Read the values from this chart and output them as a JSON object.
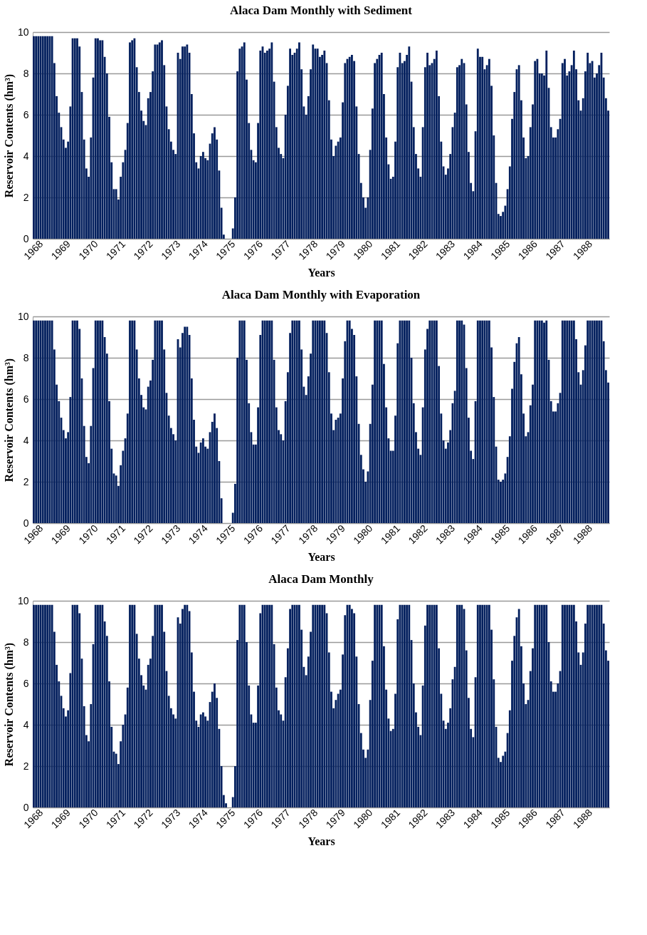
{
  "chart_data": [
    {
      "type": "bar",
      "title": "Alaca Dam Monthly with Sediment",
      "xlabel": "Years",
      "ylabel": "Reservoir Contents (hm³)",
      "ylim": [
        0,
        10
      ],
      "yticks": [
        0,
        2,
        4,
        6,
        8,
        10
      ],
      "grid": "y",
      "color": "#04205e",
      "categories": [
        "1968",
        null,
        null,
        null,
        null,
        null,
        null,
        null,
        null,
        null,
        null,
        null,
        "1969",
        null,
        null,
        null,
        null,
        null,
        null,
        null,
        null,
        null,
        null,
        null,
        "1970",
        null,
        null,
        null,
        null,
        null,
        null,
        null,
        null,
        null,
        null,
        null,
        "1971",
        null,
        null,
        null,
        null,
        null,
        null,
        null,
        null,
        null,
        null,
        null,
        "1972",
        null,
        null,
        null,
        null,
        null,
        null,
        null,
        null,
        null,
        null,
        null,
        "1973",
        null,
        null,
        null,
        null,
        null,
        null,
        null,
        null,
        null,
        null,
        null,
        "1974",
        null,
        null,
        null,
        null,
        null,
        null,
        null,
        null,
        null,
        null,
        null,
        "1975",
        null,
        null,
        null,
        null,
        null,
        null,
        null,
        null,
        null,
        null,
        null,
        "1976",
        null,
        null,
        null,
        null,
        null,
        null,
        null,
        null,
        null,
        null,
        null,
        "1977",
        null,
        null,
        null,
        null,
        null,
        null,
        null,
        null,
        null,
        null,
        null,
        "1978",
        null,
        null,
        null,
        null,
        null,
        null,
        null,
        null,
        null,
        null,
        null,
        "1979",
        null,
        null,
        null,
        null,
        null,
        null,
        null,
        null,
        null,
        null,
        null,
        "1980",
        null,
        null,
        null,
        null,
        null,
        null,
        null,
        null,
        null,
        null,
        null,
        "1981",
        null,
        null,
        null,
        null,
        null,
        null,
        null,
        null,
        null,
        null,
        null,
        "1982",
        null,
        null,
        null,
        null,
        null,
        null,
        null,
        null,
        null,
        null,
        null,
        "1983",
        null,
        null,
        null,
        null,
        null,
        null,
        null,
        null,
        null,
        null,
        null,
        "1984",
        null,
        null,
        null,
        null,
        null,
        null,
        null,
        null,
        null,
        null,
        null,
        "1985",
        null,
        null,
        null,
        null,
        null,
        null,
        null,
        null,
        null,
        null,
        null,
        "1986",
        null,
        null,
        null,
        null,
        null,
        null,
        null,
        null,
        null,
        null,
        null,
        "1987",
        null,
        null,
        null,
        null,
        null,
        null,
        null,
        null,
        null,
        null,
        null,
        "1988",
        null,
        null,
        null,
        null,
        null,
        null,
        null,
        null,
        null,
        null,
        null
      ],
      "values": [
        9.8,
        9.8,
        9.8,
        9.8,
        9.8,
        9.8,
        9.8,
        9.8,
        9.8,
        8.5,
        6.9,
        6.1,
        5.4,
        4.8,
        4.4,
        4.7,
        6.4,
        9.7,
        9.7,
        9.7,
        9.3,
        7.1,
        4.8,
        3.4,
        3.0,
        4.9,
        7.8,
        9.7,
        9.7,
        9.6,
        9.6,
        8.8,
        8.0,
        5.9,
        3.7,
        2.4,
        2.4,
        1.9,
        3.0,
        3.7,
        4.3,
        5.6,
        9.5,
        9.6,
        9.7,
        8.3,
        7.1,
        6.2,
        5.7,
        5.5,
        6.8,
        7.1,
        8.1,
        9.4,
        9.4,
        9.5,
        9.6,
        8.4,
        6.4,
        5.3,
        4.7,
        4.3,
        4.1,
        9.0,
        8.7,
        9.3,
        9.3,
        9.4,
        9.0,
        7.0,
        5.1,
        3.7,
        3.4,
        4.0,
        4.2,
        3.9,
        3.8,
        4.6,
        5.1,
        5.4,
        4.8,
        3.3,
        1.5,
        0.2,
        0,
        0,
        0,
        0.5,
        2.0,
        8.1,
        9.2,
        9.3,
        9.5,
        7.7,
        5.6,
        4.3,
        3.8,
        3.7,
        5.6,
        9.1,
        9.3,
        9.0,
        9.1,
        9.2,
        9.5,
        7.6,
        5.4,
        4.4,
        4.1,
        3.9,
        6.0,
        7.4,
        9.2,
        8.9,
        9.0,
        9.2,
        9.5,
        8.2,
        6.4,
        6.0,
        6.9,
        8.2,
        9.4,
        9.2,
        9.2,
        8.8,
        8.9,
        9.1,
        8.5,
        6.7,
        4.8,
        4.0,
        4.5,
        4.7,
        4.9,
        6.6,
        8.5,
        8.7,
        8.8,
        8.9,
        8.6,
        6.4,
        4.1,
        2.7,
        2.0,
        1.5,
        2.0,
        4.3,
        6.3,
        8.5,
        8.7,
        8.9,
        9.0,
        7.0,
        4.9,
        3.6,
        2.9,
        3.0,
        4.7,
        8.3,
        9.0,
        8.5,
        8.6,
        8.9,
        9.3,
        7.6,
        5.4,
        4.1,
        3.4,
        3.0,
        5.4,
        8.3,
        9.0,
        8.4,
        8.5,
        8.7,
        9.1,
        6.9,
        4.7,
        3.5,
        3.1,
        3.4,
        4.1,
        5.4,
        6.1,
        8.3,
        8.4,
        8.7,
        8.5,
        6.5,
        4.2,
        2.7,
        2.3,
        5.2,
        9.2,
        8.8,
        8.8,
        8.2,
        8.4,
        8.7,
        7.4,
        5.0,
        2.7,
        1.2,
        1.1,
        1.3,
        1.6,
        2.4,
        3.5,
        5.8,
        7.1,
        8.2,
        8.4,
        6.7,
        4.9,
        3.9,
        4.0,
        5.4,
        6.5,
        8.6,
        8.7,
        8.0,
        8.0,
        7.9,
        9.1,
        7.3,
        5.4,
        4.9,
        4.9,
        5.3,
        5.8,
        8.5,
        8.7,
        7.9,
        8.1,
        8.4,
        9.1,
        8.2,
        6.7,
        6.2,
        6.8,
        8.1,
        9.0,
        8.5,
        8.6,
        7.8,
        8.0,
        8.4,
        9.0,
        7.8,
        6.8,
        6.2
      ]
    },
    {
      "type": "bar",
      "title": "Alaca Dam Monthly with Evaporation",
      "xlabel": "Years",
      "ylabel": "Reservoir Contents (hm³)",
      "ylim": [
        0,
        10
      ],
      "yticks": [
        0,
        2,
        4,
        6,
        8,
        10
      ],
      "grid": "y",
      "color": "#04205e",
      "categories": [
        "1968",
        null,
        null,
        null,
        null,
        null,
        null,
        null,
        null,
        null,
        null,
        null,
        "1969",
        null,
        null,
        null,
        null,
        null,
        null,
        null,
        null,
        null,
        null,
        null,
        "1970",
        null,
        null,
        null,
        null,
        null,
        null,
        null,
        null,
        null,
        null,
        null,
        "1971",
        null,
        null,
        null,
        null,
        null,
        null,
        null,
        null,
        null,
        null,
        null,
        "1972",
        null,
        null,
        null,
        null,
        null,
        null,
        null,
        null,
        null,
        null,
        null,
        "1973",
        null,
        null,
        null,
        null,
        null,
        null,
        null,
        null,
        null,
        null,
        null,
        "1974",
        null,
        null,
        null,
        null,
        null,
        null,
        null,
        null,
        null,
        null,
        null,
        "1975",
        null,
        null,
        null,
        null,
        null,
        null,
        null,
        null,
        null,
        null,
        null,
        "1976",
        null,
        null,
        null,
        null,
        null,
        null,
        null,
        null,
        null,
        null,
        null,
        "1977",
        null,
        null,
        null,
        null,
        null,
        null,
        null,
        null,
        null,
        null,
        null,
        "1978",
        null,
        null,
        null,
        null,
        null,
        null,
        null,
        null,
        null,
        null,
        null,
        "1979",
        null,
        null,
        null,
        null,
        null,
        null,
        null,
        null,
        null,
        null,
        null,
        "1980",
        null,
        null,
        null,
        null,
        null,
        null,
        null,
        null,
        null,
        null,
        null,
        "1981",
        null,
        null,
        null,
        null,
        null,
        null,
        null,
        null,
        null,
        null,
        null,
        "1982",
        null,
        null,
        null,
        null,
        null,
        null,
        null,
        null,
        null,
        null,
        null,
        "1983",
        null,
        null,
        null,
        null,
        null,
        null,
        null,
        null,
        null,
        null,
        null,
        "1984",
        null,
        null,
        null,
        null,
        null,
        null,
        null,
        null,
        null,
        null,
        null,
        "1985",
        null,
        null,
        null,
        null,
        null,
        null,
        null,
        null,
        null,
        null,
        null,
        "1986",
        null,
        null,
        null,
        null,
        null,
        null,
        null,
        null,
        null,
        null,
        null,
        "1987",
        null,
        null,
        null,
        null,
        null,
        null,
        null,
        null,
        null,
        null,
        null,
        "1988",
        null,
        null,
        null,
        null,
        null,
        null,
        null,
        null,
        null,
        null,
        null
      ],
      "values": [
        9.8,
        9.8,
        9.8,
        9.8,
        9.8,
        9.8,
        9.8,
        9.8,
        9.8,
        8.4,
        6.7,
        5.9,
        5.1,
        4.5,
        4.1,
        4.4,
        6.1,
        9.8,
        9.8,
        9.8,
        9.4,
        7.0,
        4.7,
        3.2,
        2.9,
        4.7,
        7.5,
        9.8,
        9.8,
        9.8,
        9.8,
        9.0,
        8.2,
        5.9,
        3.6,
        2.4,
        2.3,
        1.8,
        2.8,
        3.5,
        4.1,
        5.3,
        9.8,
        9.8,
        9.8,
        8.4,
        7.0,
        6.2,
        5.6,
        5.5,
        6.6,
        6.9,
        7.9,
        9.8,
        9.8,
        9.8,
        9.8,
        8.4,
        6.3,
        5.2,
        4.6,
        4.3,
        4.0,
        8.9,
        8.5,
        9.2,
        9.5,
        9.5,
        9.1,
        7.0,
        5.0,
        3.7,
        3.4,
        3.9,
        4.1,
        3.7,
        3.6,
        4.4,
        4.9,
        5.3,
        4.6,
        3.0,
        1.2,
        0,
        0,
        0,
        0,
        0.5,
        1.9,
        8.0,
        9.8,
        9.8,
        9.8,
        7.9,
        5.8,
        4.4,
        3.8,
        3.8,
        5.6,
        9.1,
        9.8,
        9.8,
        9.8,
        9.8,
        9.8,
        7.9,
        5.6,
        4.5,
        4.3,
        4.0,
        5.9,
        7.3,
        9.2,
        9.8,
        9.8,
        9.8,
        9.8,
        8.4,
        6.6,
        6.2,
        7.1,
        8.2,
        9.8,
        9.8,
        9.8,
        9.8,
        9.8,
        9.8,
        9.2,
        7.3,
        5.3,
        4.5,
        5.0,
        5.1,
        5.3,
        7.0,
        8.8,
        9.8,
        9.8,
        9.4,
        9.1,
        7.1,
        4.8,
        3.3,
        2.6,
        2.0,
        2.5,
        4.8,
        6.7,
        9.8,
        9.8,
        9.8,
        9.8,
        7.7,
        5.6,
        4.1,
        3.5,
        3.5,
        5.2,
        8.7,
        9.8,
        9.8,
        9.8,
        9.8,
        9.8,
        8.0,
        5.8,
        4.4,
        3.6,
        3.3,
        5.6,
        8.4,
        9.4,
        9.8,
        9.8,
        9.8,
        9.8,
        7.6,
        5.3,
        4.0,
        3.6,
        3.9,
        4.5,
        5.8,
        6.4,
        9.8,
        9.8,
        9.8,
        9.6,
        7.5,
        5.1,
        3.5,
        3.1,
        5.9,
        9.8,
        9.8,
        9.8,
        9.8,
        9.8,
        9.8,
        8.5,
        6.1,
        3.7,
        2.1,
        2.0,
        2.1,
        2.4,
        3.2,
        4.2,
        6.5,
        7.8,
        8.7,
        9.0,
        7.2,
        5.3,
        4.2,
        4.4,
        5.7,
        6.7,
        9.8,
        9.8,
        9.8,
        9.8,
        9.7,
        9.8,
        7.9,
        5.9,
        5.4,
        5.4,
        5.8,
        6.3,
        9.8,
        9.8,
        9.8,
        9.8,
        9.8,
        9.8,
        8.9,
        7.3,
        6.7,
        7.4,
        8.6,
        9.8,
        9.8,
        9.8,
        9.8,
        9.8,
        9.8,
        9.8,
        8.8,
        7.4,
        6.8
      ]
    },
    {
      "type": "bar",
      "title": "Alaca Dam Monthly",
      "xlabel": "Years",
      "ylabel": "Reservoir Contents (hm³)",
      "ylim": [
        0,
        10
      ],
      "yticks": [
        0,
        2,
        4,
        6,
        8,
        10
      ],
      "grid": "y",
      "color": "#04205e",
      "categories": [
        "1968",
        null,
        null,
        null,
        null,
        null,
        null,
        null,
        null,
        null,
        null,
        null,
        "1969",
        null,
        null,
        null,
        null,
        null,
        null,
        null,
        null,
        null,
        null,
        null,
        "1970",
        null,
        null,
        null,
        null,
        null,
        null,
        null,
        null,
        null,
        null,
        null,
        "1971",
        null,
        null,
        null,
        null,
        null,
        null,
        null,
        null,
        null,
        null,
        null,
        "1972",
        null,
        null,
        null,
        null,
        null,
        null,
        null,
        null,
        null,
        null,
        null,
        "1973",
        null,
        null,
        null,
        null,
        null,
        null,
        null,
        null,
        null,
        null,
        null,
        "1974",
        null,
        null,
        null,
        null,
        null,
        null,
        null,
        null,
        null,
        null,
        null,
        "1975",
        null,
        null,
        null,
        null,
        null,
        null,
        null,
        null,
        null,
        null,
        null,
        "1976",
        null,
        null,
        null,
        null,
        null,
        null,
        null,
        null,
        null,
        null,
        null,
        "1977",
        null,
        null,
        null,
        null,
        null,
        null,
        null,
        null,
        null,
        null,
        null,
        "1978",
        null,
        null,
        null,
        null,
        null,
        null,
        null,
        null,
        null,
        null,
        null,
        "1979",
        null,
        null,
        null,
        null,
        null,
        null,
        null,
        null,
        null,
        null,
        null,
        "1980",
        null,
        null,
        null,
        null,
        null,
        null,
        null,
        null,
        null,
        null,
        null,
        "1981",
        null,
        null,
        null,
        null,
        null,
        null,
        null,
        null,
        null,
        null,
        null,
        "1982",
        null,
        null,
        null,
        null,
        null,
        null,
        null,
        null,
        null,
        null,
        null,
        "1983",
        null,
        null,
        null,
        null,
        null,
        null,
        null,
        null,
        null,
        null,
        null,
        "1984",
        null,
        null,
        null,
        null,
        null,
        null,
        null,
        null,
        null,
        null,
        null,
        "1985",
        null,
        null,
        null,
        null,
        null,
        null,
        null,
        null,
        null,
        null,
        null,
        "1986",
        null,
        null,
        null,
        null,
        null,
        null,
        null,
        null,
        null,
        null,
        null,
        "1987",
        null,
        null,
        null,
        null,
        null,
        null,
        null,
        null,
        null,
        null,
        null,
        "1988",
        null,
        null,
        null,
        null,
        null,
        null,
        null,
        null,
        null,
        null,
        null
      ],
      "values": [
        9.8,
        9.8,
        9.8,
        9.8,
        9.8,
        9.8,
        9.8,
        9.8,
        9.8,
        8.5,
        6.9,
        6.1,
        5.4,
        4.8,
        4.4,
        4.7,
        6.5,
        9.8,
        9.8,
        9.8,
        9.4,
        7.2,
        4.9,
        3.5,
        3.2,
        5.0,
        7.9,
        9.8,
        9.8,
        9.8,
        9.8,
        9.0,
        8.3,
        6.1,
        3.9,
        2.7,
        2.6,
        2.1,
        3.2,
        4.0,
        4.5,
        5.8,
        9.8,
        9.8,
        9.8,
        8.4,
        7.2,
        6.4,
        5.9,
        5.7,
        6.9,
        7.2,
        8.3,
        9.8,
        9.8,
        9.8,
        9.8,
        8.5,
        6.6,
        5.4,
        4.8,
        4.5,
        4.3,
        9.2,
        8.9,
        9.6,
        9.8,
        9.8,
        9.5,
        7.5,
        5.6,
        4.2,
        3.9,
        4.5,
        4.6,
        4.4,
        4.2,
        5.1,
        5.6,
        6.0,
        5.3,
        3.8,
        2.0,
        0.6,
        0.2,
        0,
        0,
        0.5,
        2.0,
        8.1,
        9.8,
        9.8,
        9.8,
        8.0,
        5.9,
        4.5,
        4.1,
        4.1,
        5.9,
        9.4,
        9.8,
        9.8,
        9.8,
        9.8,
        9.8,
        7.9,
        5.8,
        4.7,
        4.5,
        4.2,
        6.3,
        7.7,
        9.6,
        9.8,
        9.8,
        9.8,
        9.8,
        8.6,
        6.8,
        6.4,
        7.3,
        8.5,
        9.8,
        9.8,
        9.8,
        9.8,
        9.8,
        9.8,
        9.4,
        7.5,
        5.6,
        4.8,
        5.2,
        5.5,
        5.7,
        7.4,
        9.3,
        9.8,
        9.8,
        9.6,
        9.4,
        7.3,
        5.0,
        3.6,
        2.8,
        2.4,
        2.8,
        5.2,
        7.1,
        9.8,
        9.8,
        9.8,
        9.8,
        7.8,
        5.7,
        4.3,
        3.7,
        3.8,
        5.5,
        9.1,
        9.8,
        9.8,
        9.8,
        9.8,
        9.8,
        8.1,
        6.0,
        4.6,
        3.9,
        3.5,
        5.9,
        8.8,
        9.8,
        9.8,
        9.8,
        9.8,
        9.8,
        7.7,
        5.5,
        4.2,
        3.8,
        4.1,
        4.8,
        6.2,
        6.8,
        9.8,
        9.8,
        9.8,
        9.6,
        7.6,
        5.3,
        3.8,
        3.4,
        6.3,
        9.8,
        9.8,
        9.8,
        9.8,
        9.8,
        9.8,
        8.6,
        6.2,
        3.9,
        2.4,
        2.2,
        2.5,
        2.7,
        3.6,
        4.7,
        7.1,
        8.3,
        9.2,
        9.6,
        7.8,
        6.0,
        5.0,
        5.2,
        6.6,
        7.7,
        9.8,
        9.8,
        9.8,
        9.8,
        9.8,
        9.8,
        8.0,
        6.1,
        5.6,
        5.6,
        6.0,
        6.6,
        9.8,
        9.8,
        9.8,
        9.8,
        9.8,
        9.8,
        9.0,
        7.5,
        6.9,
        7.5,
        8.9,
        9.8,
        9.8,
        9.8,
        9.8,
        9.8,
        9.8,
        9.8,
        8.9,
        7.6,
        7.1
      ]
    }
  ]
}
